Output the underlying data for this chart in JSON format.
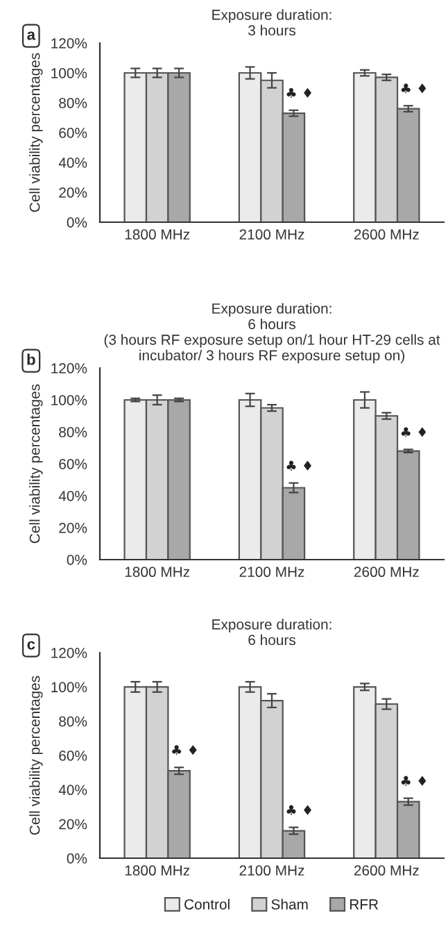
{
  "chart_data": [
    {
      "type": "bar",
      "title": "Exposure duration:\n3 hours",
      "ylabel": "Cell viability percentages",
      "categories": [
        "1800 MHz",
        "2100 MHz",
        "2600 MHz"
      ],
      "series": [
        {
          "color": "#ebebeb",
          "values": [
            100,
            100,
            100
          ],
          "errors": [
            3,
            4,
            2
          ]
        },
        {
          "color": "#d2d2d2",
          "values": [
            100,
            95,
            97
          ],
          "errors": [
            3,
            5,
            2
          ]
        },
        {
          "color": "#a8a8a8",
          "values": [
            100,
            73,
            76
          ],
          "errors": [
            3,
            2,
            2
          ],
          "value_labels": [
            null,
            "♣ ♦",
            "♣ ♦"
          ]
        }
      ],
      "ylim": [
        0,
        120
      ],
      "yticks": [
        {
          "value": 0,
          "label": "0%"
        },
        {
          "value": 20,
          "label": "20%"
        },
        {
          "value": 40,
          "label": "40%"
        },
        {
          "value": 60,
          "label": "60%"
        },
        {
          "value": 80,
          "label": "80%"
        },
        {
          "value": 100,
          "label": "100%"
        },
        {
          "value": 120,
          "label": "120%"
        }
      ],
      "grid": false,
      "legend": false,
      "annotations": [
        "a"
      ]
    },
    {
      "type": "bar",
      "title": "Exposure duration:\n6 hours\n(3 hours RF exposure setup on/1 hour HT-29 cells at\nincubator/ 3 hours RF exposure setup on)",
      "ylabel": "Cell viability percentages",
      "categories": [
        "1800 MHz",
        "2100 MHz",
        "2600 MHz"
      ],
      "series": [
        {
          "color": "#ebebeb",
          "values": [
            100,
            100,
            100
          ],
          "errors": [
            1,
            4,
            5
          ]
        },
        {
          "color": "#d2d2d2",
          "values": [
            100,
            95,
            90
          ],
          "errors": [
            3,
            2,
            2
          ]
        },
        {
          "color": "#a8a8a8",
          "values": [
            100,
            45,
            68
          ],
          "errors": [
            1,
            3,
            1
          ],
          "value_labels": [
            null,
            "♣ ♦",
            "♣ ♦"
          ]
        }
      ],
      "ylim": [
        0,
        120
      ],
      "yticks": [
        {
          "value": 0,
          "label": "0%"
        },
        {
          "value": 20,
          "label": "20%"
        },
        {
          "value": 40,
          "label": "40%"
        },
        {
          "value": 60,
          "label": "60%"
        },
        {
          "value": 80,
          "label": "80%"
        },
        {
          "value": 100,
          "label": "100%"
        },
        {
          "value": 120,
          "label": "120%"
        }
      ],
      "grid": false,
      "legend": false,
      "annotations": [
        "b"
      ]
    },
    {
      "type": "bar",
      "title": "Exposure duration:\n6 hours",
      "ylabel": "Cell viability percentages",
      "categories": [
        "1800 MHz",
        "2100 MHz",
        "2600 MHz"
      ],
      "series": [
        {
          "name": "Control",
          "color": "#ebebeb",
          "values": [
            100,
            100,
            100
          ],
          "errors": [
            3,
            3,
            2
          ]
        },
        {
          "name": "Sham",
          "color": "#d2d2d2",
          "values": [
            100,
            92,
            90
          ],
          "errors": [
            3,
            4,
            3
          ]
        },
        {
          "name": "RFR",
          "color": "#a8a8a8",
          "values": [
            51,
            16,
            33
          ],
          "errors": [
            2,
            2,
            2
          ],
          "value_labels": [
            "♣ ♦",
            "♣ ♦",
            "♣ ♦"
          ]
        }
      ],
      "ylim": [
        0,
        120
      ],
      "yticks": [
        {
          "value": 0,
          "label": "0%"
        },
        {
          "value": 20,
          "label": "20%"
        },
        {
          "value": 40,
          "label": "40%"
        },
        {
          "value": 60,
          "label": "60%"
        },
        {
          "value": 80,
          "label": "80%"
        },
        {
          "value": 100,
          "label": "100%"
        },
        {
          "value": 120,
          "label": "120%"
        }
      ],
      "grid": false,
      "legend": "bottom",
      "annotations": [
        "c"
      ]
    }
  ]
}
